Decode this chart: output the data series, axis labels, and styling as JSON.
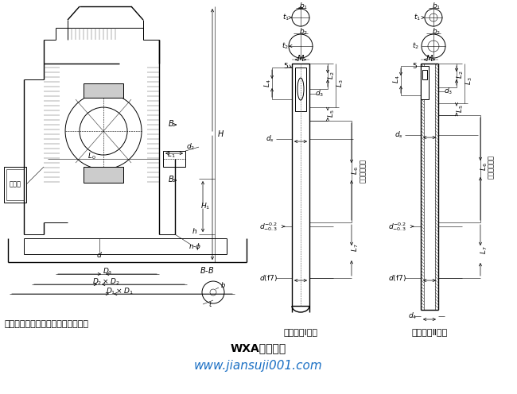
{
  "title": "WXA型减速器",
  "subtitle": "www.jiansuji001.com",
  "note": "注：对于空心轴、顶上的盖板可取消",
  "label_solid": "实心轴（Ⅰ型）",
  "label_hollow": "空心轴（Ⅱ型）",
  "bg_color": "#ffffff",
  "line_color": "#000000",
  "web_color": "#1a6fc4"
}
